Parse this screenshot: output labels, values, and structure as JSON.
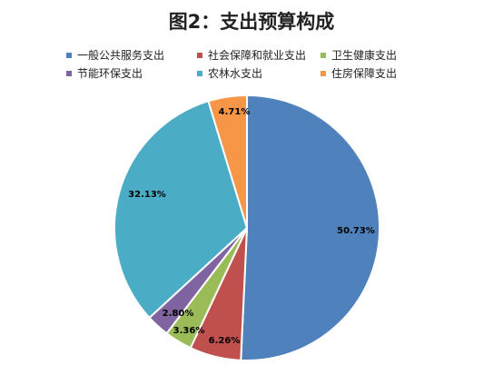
{
  "chart_data": {
    "type": "pie",
    "title": "图2：支出预算构成",
    "legend_position": "top",
    "categories": [
      "一般公共服务支出",
      "社会保障和就业支出",
      "卫生健康支出",
      "节能环保支出",
      "农林水支出",
      "住房保障支出"
    ],
    "values": [
      50.73,
      6.26,
      3.36,
      2.8,
      32.13,
      4.71
    ],
    "value_labels": [
      "50.73%",
      "6.26%",
      "3.36%",
      "2.80%",
      "32.13%",
      "4.71%"
    ],
    "colors": [
      "#4F81BD",
      "#C0504D",
      "#9BBB59",
      "#8064A2",
      "#4BACC6",
      "#F79646"
    ]
  }
}
